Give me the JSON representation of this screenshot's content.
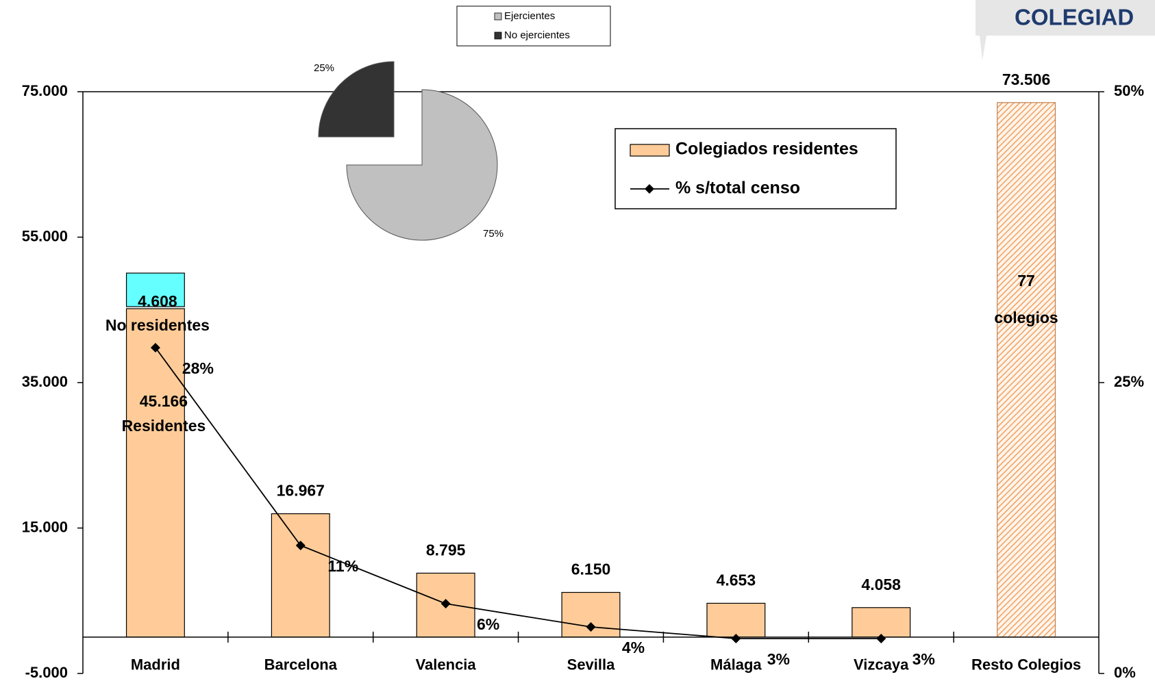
{
  "header": {
    "title": "COLEGIAD"
  },
  "chart_data": [
    {
      "type": "bar",
      "categories": [
        "Madrid",
        "Barcelona",
        "Valencia",
        "Sevilla",
        "Málaga",
        "Vizcaya",
        "Resto Colegios"
      ],
      "series": [
        {
          "name": "Colegiados residentes",
          "color": "#ffcc99",
          "values": [
            45166,
            16967,
            8795,
            6150,
            4653,
            4058,
            73506
          ],
          "value_labels": [
            "45.166",
            "16.967",
            "8.795",
            "6.150",
            "4.653",
            "4.058",
            "73.506"
          ],
          "bar_styles": [
            "solid",
            "solid",
            "solid",
            "solid",
            "solid",
            "solid",
            "hatched"
          ]
        },
        {
          "name": "% s/total censo",
          "axis": "y2",
          "color": "#000000",
          "values": [
            28,
            11,
            6,
            4,
            3,
            3,
            null
          ],
          "value_labels": [
            "28%",
            "11%",
            "6%",
            "4%",
            "3%",
            "3%",
            null
          ]
        }
      ],
      "stack": {
        "label": "No residentes",
        "color": "#66ffff",
        "values": [
          4608,
          null,
          null,
          null,
          null,
          null,
          null
        ],
        "value_labels": [
          "4.608",
          null,
          null,
          null,
          null,
          null,
          null
        ]
      },
      "base_label": "Residentes",
      "annotations": [
        "77",
        "colegios"
      ],
      "ylim": [
        -5000,
        75000
      ],
      "yticks": [
        {
          "value": -5000,
          "label": "-5.000"
        },
        {
          "value": 15000,
          "label": "15.000"
        },
        {
          "value": 35000,
          "label": "35.000"
        },
        {
          "value": 55000,
          "label": "55.000"
        },
        {
          "value": 75000,
          "label": "75.000"
        }
      ],
      "y2lim": [
        0,
        50
      ],
      "y2ticks": [
        {
          "value": 0,
          "label": "0%"
        },
        {
          "value": 25,
          "label": "25%"
        },
        {
          "value": 50,
          "label": "50%"
        }
      ],
      "grid": false,
      "legend": "upper right"
    },
    {
      "type": "pie",
      "categories": [
        "Ejercientes",
        "No ejercientes"
      ],
      "values": [
        75,
        25
      ],
      "value_labels": [
        "75%",
        "25%"
      ],
      "colors": [
        "#c0c0c0",
        "#333333"
      ],
      "exploded": [
        false,
        true
      ]
    }
  ]
}
